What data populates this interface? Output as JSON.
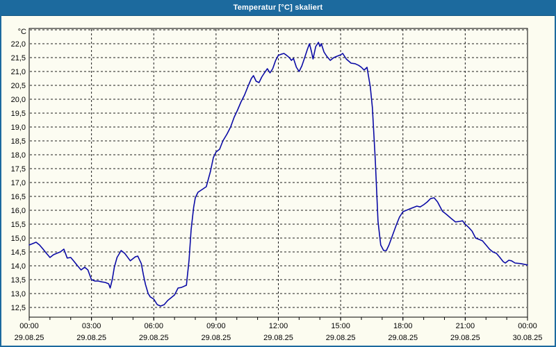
{
  "window": {
    "title": "Temperatur [°C] skaliert"
  },
  "colors": {
    "titlebar": "#1c6a9e",
    "window_background": "#fcfcf0",
    "plot_background": "#fcfcf2",
    "curve": "#0a0aa5",
    "grid": "#1b1b1b",
    "frame": "#000000",
    "tick_text": "#000000",
    "title_text": "#ffffff"
  },
  "chart_data": {
    "type": "line",
    "title": "Temperatur [°C] skaliert",
    "xlabel": "",
    "ylabel": "°C",
    "y_unit_label": "°C",
    "grid": "dashed",
    "legend": "none",
    "ylim_labeled": [
      12.5,
      22.0
    ],
    "y_axis_extent": [
      12.15,
      22.55
    ],
    "y_tick_step": 0.5,
    "y_unlabeled_gridline": 22.5,
    "y_ticks": [
      {
        "value": 22.0,
        "label": "22,0"
      },
      {
        "value": 21.5,
        "label": "21,5"
      },
      {
        "value": 21.0,
        "label": "21,0"
      },
      {
        "value": 20.5,
        "label": "20,5"
      },
      {
        "value": 20.0,
        "label": "20,0"
      },
      {
        "value": 19.5,
        "label": "19,5"
      },
      {
        "value": 19.0,
        "label": "19,0"
      },
      {
        "value": 18.5,
        "label": "18,5"
      },
      {
        "value": 18.0,
        "label": "18,0"
      },
      {
        "value": 17.5,
        "label": "17,5"
      },
      {
        "value": 17.0,
        "label": "17,0"
      },
      {
        "value": 16.5,
        "label": "16,5"
      },
      {
        "value": 16.0,
        "label": "16,0"
      },
      {
        "value": 15.5,
        "label": "15,5"
      },
      {
        "value": 15.0,
        "label": "15,0"
      },
      {
        "value": 14.5,
        "label": "14,5"
      },
      {
        "value": 14.0,
        "label": "14,0"
      },
      {
        "value": 13.5,
        "label": "13,5"
      },
      {
        "value": 13.0,
        "label": "13,0"
      },
      {
        "value": 12.5,
        "label": "12,5"
      }
    ],
    "x_range_hours": [
      0,
      24
    ],
    "x_minor_tick_hours": 1,
    "x_major_tick_hours": 3,
    "x_ticks": [
      {
        "hour": 0,
        "time": "00:00",
        "date": "29.08.25"
      },
      {
        "hour": 3,
        "time": "03:00",
        "date": "29.08.25"
      },
      {
        "hour": 6,
        "time": "06:00",
        "date": "29.08.25"
      },
      {
        "hour": 9,
        "time": "09:00",
        "date": "29.08.25"
      },
      {
        "hour": 12,
        "time": "12:00",
        "date": "29.08.25"
      },
      {
        "hour": 15,
        "time": "15:00",
        "date": "29.08.25"
      },
      {
        "hour": 18,
        "time": "18:00",
        "date": "29.08.25"
      },
      {
        "hour": 21,
        "time": "21:00",
        "date": "29.08.25"
      },
      {
        "hour": 24,
        "time": "00:00",
        "date": "30.08.25"
      }
    ],
    "series": [
      {
        "name": "Temperatur",
        "color": "#0a0aa5",
        "points": [
          [
            0.0,
            14.75
          ],
          [
            0.17,
            14.8
          ],
          [
            0.33,
            14.85
          ],
          [
            0.5,
            14.75
          ],
          [
            0.67,
            14.6
          ],
          [
            0.83,
            14.45
          ],
          [
            1.0,
            14.3
          ],
          [
            1.17,
            14.4
          ],
          [
            1.33,
            14.45
          ],
          [
            1.5,
            14.5
          ],
          [
            1.67,
            14.6
          ],
          [
            1.83,
            14.28
          ],
          [
            2.0,
            14.3
          ],
          [
            2.17,
            14.15
          ],
          [
            2.33,
            14.0
          ],
          [
            2.5,
            13.85
          ],
          [
            2.67,
            13.95
          ],
          [
            2.83,
            13.85
          ],
          [
            3.0,
            13.5
          ],
          [
            3.17,
            13.45
          ],
          [
            3.33,
            13.45
          ],
          [
            3.5,
            13.42
          ],
          [
            3.67,
            13.4
          ],
          [
            3.83,
            13.35
          ],
          [
            3.9,
            13.2
          ],
          [
            4.0,
            13.5
          ],
          [
            4.1,
            13.95
          ],
          [
            4.23,
            14.3
          ],
          [
            4.43,
            14.55
          ],
          [
            4.6,
            14.45
          ],
          [
            4.87,
            14.18
          ],
          [
            5.1,
            14.32
          ],
          [
            5.23,
            14.35
          ],
          [
            5.4,
            14.08
          ],
          [
            5.5,
            13.68
          ],
          [
            5.6,
            13.33
          ],
          [
            5.73,
            13.0
          ],
          [
            5.83,
            12.88
          ],
          [
            6.0,
            12.8
          ],
          [
            6.17,
            12.6
          ],
          [
            6.33,
            12.55
          ],
          [
            6.5,
            12.6
          ],
          [
            6.67,
            12.75
          ],
          [
            7.0,
            12.95
          ],
          [
            7.17,
            13.2
          ],
          [
            7.33,
            13.22
          ],
          [
            7.57,
            13.3
          ],
          [
            7.7,
            14.2
          ],
          [
            7.8,
            15.3
          ],
          [
            7.92,
            16.1
          ],
          [
            8.0,
            16.45
          ],
          [
            8.13,
            16.65
          ],
          [
            8.33,
            16.75
          ],
          [
            8.53,
            16.85
          ],
          [
            8.73,
            17.4
          ],
          [
            8.87,
            17.9
          ],
          [
            9.0,
            18.1
          ],
          [
            9.17,
            18.2
          ],
          [
            9.33,
            18.5
          ],
          [
            9.53,
            18.75
          ],
          [
            9.7,
            19.0
          ],
          [
            9.87,
            19.35
          ],
          [
            10.03,
            19.6
          ],
          [
            10.2,
            19.9
          ],
          [
            10.37,
            20.15
          ],
          [
            10.53,
            20.45
          ],
          [
            10.7,
            20.75
          ],
          [
            10.8,
            20.85
          ],
          [
            10.93,
            20.65
          ],
          [
            11.07,
            20.6
          ],
          [
            11.2,
            20.8
          ],
          [
            11.33,
            20.95
          ],
          [
            11.47,
            21.1
          ],
          [
            11.6,
            20.95
          ],
          [
            11.73,
            21.1
          ],
          [
            11.87,
            21.4
          ],
          [
            12.0,
            21.58
          ],
          [
            12.13,
            21.62
          ],
          [
            12.27,
            21.65
          ],
          [
            12.4,
            21.58
          ],
          [
            12.53,
            21.5
          ],
          [
            12.63,
            21.4
          ],
          [
            12.73,
            21.47
          ],
          [
            12.87,
            21.15
          ],
          [
            13.0,
            21.0
          ],
          [
            13.13,
            21.2
          ],
          [
            13.27,
            21.5
          ],
          [
            13.4,
            21.8
          ],
          [
            13.5,
            22.0
          ],
          [
            13.6,
            21.7
          ],
          [
            13.67,
            21.45
          ],
          [
            13.8,
            21.9
          ],
          [
            13.93,
            22.05
          ],
          [
            14.0,
            21.9
          ],
          [
            14.07,
            22.0
          ],
          [
            14.2,
            21.7
          ],
          [
            14.33,
            21.55
          ],
          [
            14.5,
            21.4
          ],
          [
            14.67,
            21.5
          ],
          [
            14.83,
            21.55
          ],
          [
            15.0,
            21.6
          ],
          [
            15.1,
            21.65
          ],
          [
            15.27,
            21.45
          ],
          [
            15.5,
            21.3
          ],
          [
            15.7,
            21.28
          ],
          [
            15.87,
            21.22
          ],
          [
            16.0,
            21.15
          ],
          [
            16.13,
            21.05
          ],
          [
            16.27,
            21.15
          ],
          [
            16.37,
            20.7
          ],
          [
            16.43,
            20.45
          ],
          [
            16.53,
            19.7
          ],
          [
            16.67,
            17.8
          ],
          [
            16.8,
            15.6
          ],
          [
            16.93,
            14.75
          ],
          [
            17.07,
            14.55
          ],
          [
            17.2,
            14.55
          ],
          [
            17.33,
            14.75
          ],
          [
            17.5,
            15.1
          ],
          [
            17.67,
            15.45
          ],
          [
            17.83,
            15.75
          ],
          [
            18.0,
            15.95
          ],
          [
            18.17,
            16.0
          ],
          [
            18.33,
            16.05
          ],
          [
            18.5,
            16.1
          ],
          [
            18.67,
            16.15
          ],
          [
            18.83,
            16.12
          ],
          [
            19.0,
            16.2
          ],
          [
            19.17,
            16.3
          ],
          [
            19.33,
            16.42
          ],
          [
            19.5,
            16.45
          ],
          [
            19.67,
            16.3
          ],
          [
            19.9,
            15.97
          ],
          [
            20.1,
            15.85
          ],
          [
            20.33,
            15.7
          ],
          [
            20.53,
            15.58
          ],
          [
            20.73,
            15.6
          ],
          [
            20.87,
            15.62
          ],
          [
            21.0,
            15.5
          ],
          [
            21.17,
            15.38
          ],
          [
            21.33,
            15.25
          ],
          [
            21.5,
            15.0
          ],
          [
            21.67,
            14.95
          ],
          [
            21.83,
            14.9
          ],
          [
            22.0,
            14.75
          ],
          [
            22.17,
            14.6
          ],
          [
            22.33,
            14.5
          ],
          [
            22.5,
            14.45
          ],
          [
            22.67,
            14.3
          ],
          [
            22.83,
            14.15
          ],
          [
            22.93,
            14.1
          ],
          [
            23.1,
            14.2
          ],
          [
            23.23,
            14.18
          ],
          [
            23.4,
            14.1
          ],
          [
            23.67,
            14.08
          ],
          [
            24.0,
            14.03
          ]
        ]
      }
    ]
  }
}
